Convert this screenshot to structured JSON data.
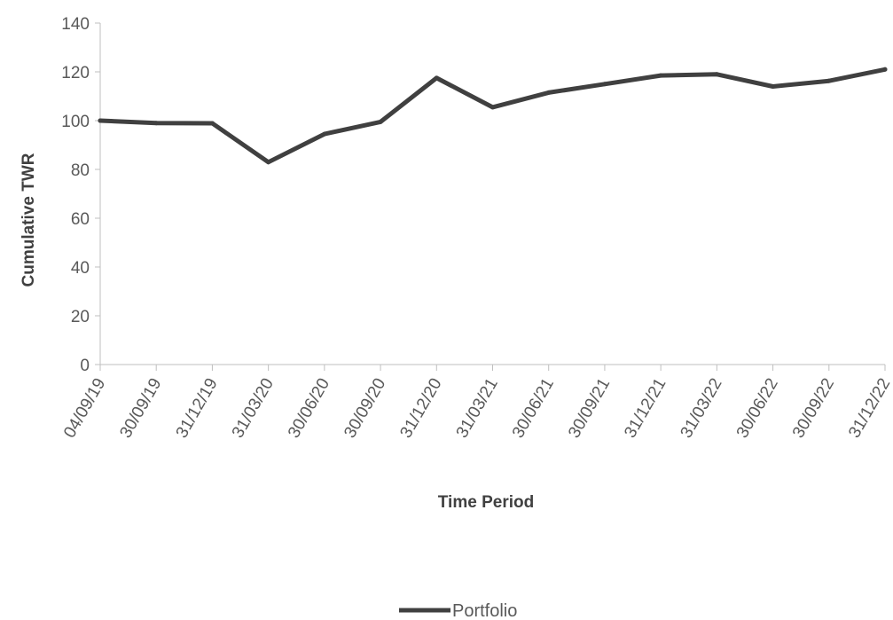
{
  "chart_data": {
    "type": "line",
    "title": "",
    "xlabel": "Time Period",
    "ylabel": "Cumulative TWR",
    "ylim": [
      0,
      140
    ],
    "yticks": [
      0,
      20,
      40,
      60,
      80,
      100,
      120,
      140
    ],
    "grid": false,
    "legend_position": "bottom",
    "categories": [
      "04/09/19",
      "30/09/19",
      "31/12/19",
      "31/03/20",
      "30/06/20",
      "30/09/20",
      "31/12/20",
      "31/03/21",
      "30/06/21",
      "30/09/21",
      "31/12/21",
      "31/03/22",
      "30/06/22",
      "30/09/22",
      "31/12/22"
    ],
    "series": [
      {
        "name": "Portfolio",
        "color": "#404040",
        "values": [
          100,
          99,
          98.9,
          83,
          94.5,
          99.5,
          117.5,
          105.5,
          111.5,
          115,
          118.5,
          119,
          114,
          116.3,
          121
        ]
      }
    ]
  }
}
